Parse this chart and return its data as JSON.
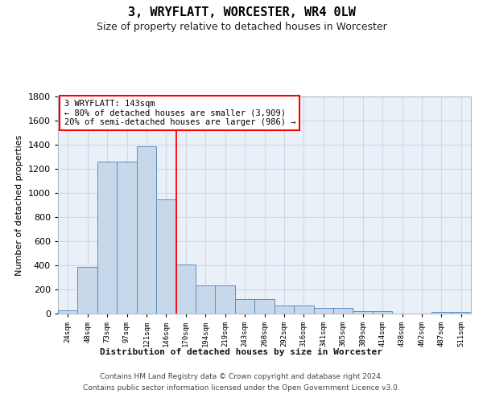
{
  "title": "3, WRYFLATT, WORCESTER, WR4 0LW",
  "subtitle": "Size of property relative to detached houses in Worcester",
  "xlabel": "Distribution of detached houses by size in Worcester",
  "ylabel": "Number of detached properties",
  "footer_line1": "Contains HM Land Registry data © Crown copyright and database right 2024.",
  "footer_line2": "Contains public sector information licensed under the Open Government Licence v3.0.",
  "bar_labels": [
    "24sqm",
    "48sqm",
    "73sqm",
    "97sqm",
    "121sqm",
    "146sqm",
    "170sqm",
    "194sqm",
    "219sqm",
    "243sqm",
    "268sqm",
    "292sqm",
    "316sqm",
    "341sqm",
    "365sqm",
    "389sqm",
    "414sqm",
    "438sqm",
    "462sqm",
    "487sqm",
    "511sqm"
  ],
  "bar_values": [
    30,
    390,
    1260,
    1260,
    1390,
    950,
    410,
    235,
    235,
    120,
    120,
    70,
    70,
    45,
    45,
    20,
    20,
    0,
    0,
    15,
    15
  ],
  "bar_color": "#c8d8eb",
  "bar_edge_color": "#5a8fc0",
  "grid_color": "#d0d8e8",
  "background_color": "#eaf0f8",
  "red_line_x": 5.5,
  "annotation_text": "3 WRYFLATT: 143sqm\n← 80% of detached houses are smaller (3,909)\n20% of semi-detached houses are larger (986) →",
  "annotation_box_color": "white",
  "annotation_box_edge": "red",
  "ylim": [
    0,
    1800
  ],
  "yticks": [
    0,
    200,
    400,
    600,
    800,
    1000,
    1200,
    1400,
    1600,
    1800
  ],
  "title_fontsize": 11,
  "subtitle_fontsize": 9
}
